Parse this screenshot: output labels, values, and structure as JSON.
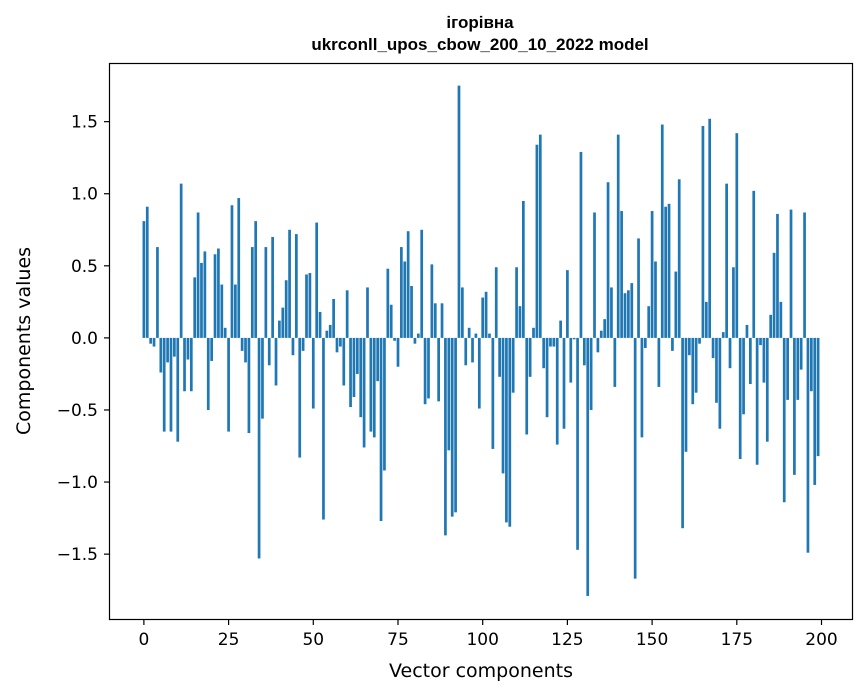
{
  "chart_data": {
    "type": "bar",
    "title": [
      "ігорівна",
      "ukrconll_upos_cbow_200_10_2022 model"
    ],
    "xlabel": "Vector components",
    "ylabel": "Components values",
    "xlim": [
      -10,
      209
    ],
    "ylim": [
      -1.95,
      1.9
    ],
    "xticks": [
      0,
      25,
      50,
      75,
      100,
      125,
      150,
      175,
      200
    ],
    "xtick_labels": [
      "0",
      "25",
      "50",
      "75",
      "100",
      "125",
      "150",
      "175",
      "200"
    ],
    "yticks": [
      -1.5,
      -1.0,
      -0.5,
      0.0,
      0.5,
      1.0,
      1.5
    ],
    "ytick_labels": [
      "−1.5",
      "−1.0",
      "−0.5",
      "0.0",
      "0.5",
      "1.0",
      "1.5"
    ],
    "grid": false,
    "bar_color": "#1f77b4",
    "x": [
      0,
      1,
      2,
      3,
      4,
      5,
      6,
      7,
      8,
      9,
      10,
      11,
      12,
      13,
      14,
      15,
      16,
      17,
      18,
      19,
      20,
      21,
      22,
      23,
      24,
      25,
      26,
      27,
      28,
      29,
      30,
      31,
      32,
      33,
      34,
      35,
      36,
      37,
      38,
      39,
      40,
      41,
      42,
      43,
      44,
      45,
      46,
      47,
      48,
      49,
      50,
      51,
      52,
      53,
      54,
      55,
      56,
      57,
      58,
      59,
      60,
      61,
      62,
      63,
      64,
      65,
      66,
      67,
      68,
      69,
      70,
      71,
      72,
      73,
      74,
      75,
      76,
      77,
      78,
      79,
      80,
      81,
      82,
      83,
      84,
      85,
      86,
      87,
      88,
      89,
      90,
      91,
      92,
      93,
      94,
      95,
      96,
      97,
      98,
      99,
      100,
      101,
      102,
      103,
      104,
      105,
      106,
      107,
      108,
      109,
      110,
      111,
      112,
      113,
      114,
      115,
      116,
      117,
      118,
      119,
      120,
      121,
      122,
      123,
      124,
      125,
      126,
      127,
      128,
      129,
      130,
      131,
      132,
      133,
      134,
      135,
      136,
      137,
      138,
      139,
      140,
      141,
      142,
      143,
      144,
      145,
      146,
      147,
      148,
      149,
      150,
      151,
      152,
      153,
      154,
      155,
      156,
      157,
      158,
      159,
      160,
      161,
      162,
      163,
      164,
      165,
      166,
      167,
      168,
      169,
      170,
      171,
      172,
      173,
      174,
      175,
      176,
      177,
      178,
      179,
      180,
      181,
      182,
      183,
      184,
      185,
      186,
      187,
      188,
      189,
      190,
      191,
      192,
      193,
      194,
      195,
      196,
      197,
      198,
      199
    ],
    "values": [
      0.81,
      0.91,
      -0.04,
      -0.06,
      0.63,
      -0.24,
      -0.65,
      -0.17,
      -0.65,
      -0.13,
      -0.72,
      1.07,
      -0.37,
      -0.15,
      -0.37,
      0.42,
      0.87,
      0.52,
      0.6,
      -0.5,
      -0.16,
      0.58,
      0.62,
      0.37,
      0.07,
      -0.65,
      0.92,
      0.37,
      0.97,
      -0.09,
      -0.17,
      -0.66,
      0.63,
      0.81,
      -1.53,
      -0.56,
      0.63,
      -0.19,
      0.7,
      -0.33,
      0.12,
      0.21,
      0.4,
      0.75,
      -0.12,
      0.72,
      -0.83,
      -0.09,
      0.44,
      0.45,
      -0.49,
      0.8,
      0.18,
      -1.26,
      0.05,
      0.09,
      0.27,
      -0.1,
      -0.06,
      -0.33,
      0.33,
      -0.48,
      -0.41,
      -0.25,
      -0.55,
      -0.76,
      0.35,
      -0.65,
      -0.69,
      -0.3,
      -1.27,
      -0.92,
      0.48,
      0.23,
      -0.02,
      -0.2,
      0.63,
      0.53,
      0.74,
      0.36,
      -0.04,
      0.03,
      0.75,
      -0.46,
      -0.42,
      0.51,
      0.24,
      -0.44,
      0.24,
      -1.37,
      -0.78,
      -1.24,
      -1.21,
      1.75,
      0.35,
      -0.19,
      0.07,
      -0.17,
      0.03,
      -0.49,
      0.28,
      0.32,
      0.03,
      -0.77,
      0.49,
      -0.27,
      -0.94,
      -1.28,
      -1.31,
      -0.38,
      0.49,
      0.22,
      0.95,
      -0.67,
      -0.27,
      0.07,
      1.34,
      1.41,
      -0.21,
      -0.55,
      -0.06,
      -0.06,
      -0.74,
      0.12,
      -0.63,
      0.47,
      -0.31,
      -0.01,
      -1.47,
      1.29,
      -0.19,
      -1.79,
      -0.5,
      0.87,
      -0.1,
      0.05,
      0.13,
      1.08,
      0.35,
      -0.34,
      1.41,
      0.88,
      0.31,
      0.33,
      0.38,
      -1.67,
      0.69,
      -0.69,
      -0.07,
      0.22,
      0.88,
      0.53,
      -0.34,
      1.48,
      0.91,
      0.93,
      -0.09,
      0.46,
      1.1,
      -1.32,
      -0.79,
      -0.12,
      -0.46,
      -0.38,
      -0.04,
      1.47,
      0.25,
      1.52,
      -0.14,
      -0.45,
      -0.63,
      0.04,
      1.07,
      -0.21,
      0.49,
      1.42,
      -0.84,
      -0.53,
      0.09,
      -0.32,
      1.02,
      -0.88,
      -0.05,
      -0.31,
      -0.72,
      0.16,
      0.59,
      0.86,
      0.25,
      -1.14,
      -0.43,
      0.89,
      -0.95,
      -0.43,
      -0.22,
      0.87,
      -1.49,
      -0.37,
      -1.02,
      -0.82
    ]
  }
}
